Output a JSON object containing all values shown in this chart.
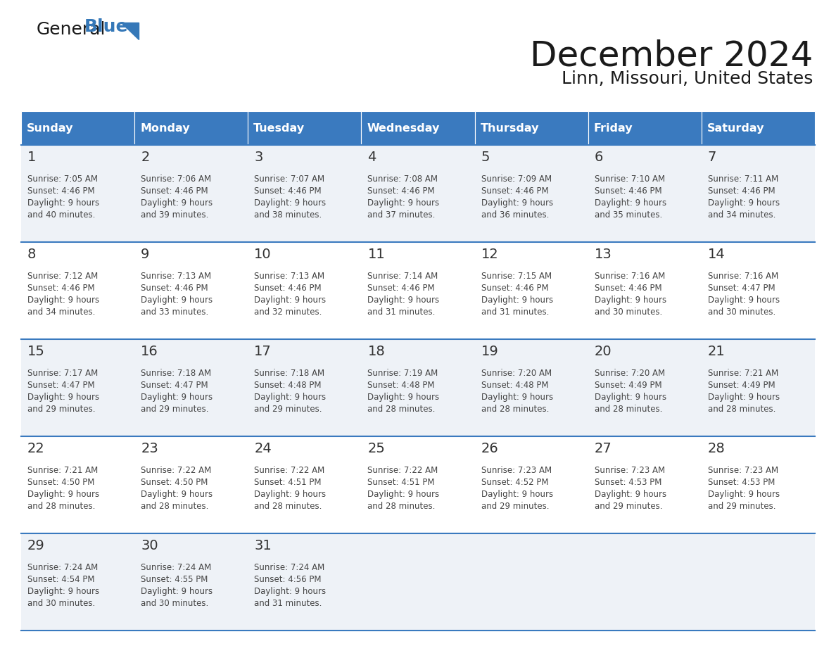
{
  "title": "December 2024",
  "subtitle": "Linn, Missouri, United States",
  "days_of_week": [
    "Sunday",
    "Monday",
    "Tuesday",
    "Wednesday",
    "Thursday",
    "Friday",
    "Saturday"
  ],
  "header_bg": "#3a7abf",
  "header_text": "#ffffff",
  "cell_bg_odd": "#eef2f7",
  "cell_bg_even": "#ffffff",
  "line_color": "#3a7abf",
  "day_num_color": "#333333",
  "text_color": "#444444",
  "title_color": "#1a1a1a",
  "logo_general_color": "#1a1a1a",
  "logo_blue_color": "#3578b8",
  "calendar_data": [
    {
      "day": 1,
      "col": 0,
      "row": 0,
      "sunrise": "7:05 AM",
      "sunset": "4:46 PM",
      "daylight_h": "9",
      "daylight_m": "40"
    },
    {
      "day": 2,
      "col": 1,
      "row": 0,
      "sunrise": "7:06 AM",
      "sunset": "4:46 PM",
      "daylight_h": "9",
      "daylight_m": "39"
    },
    {
      "day": 3,
      "col": 2,
      "row": 0,
      "sunrise": "7:07 AM",
      "sunset": "4:46 PM",
      "daylight_h": "9",
      "daylight_m": "38"
    },
    {
      "day": 4,
      "col": 3,
      "row": 0,
      "sunrise": "7:08 AM",
      "sunset": "4:46 PM",
      "daylight_h": "9",
      "daylight_m": "37"
    },
    {
      "day": 5,
      "col": 4,
      "row": 0,
      "sunrise": "7:09 AM",
      "sunset": "4:46 PM",
      "daylight_h": "9",
      "daylight_m": "36"
    },
    {
      "day": 6,
      "col": 5,
      "row": 0,
      "sunrise": "7:10 AM",
      "sunset": "4:46 PM",
      "daylight_h": "9",
      "daylight_m": "35"
    },
    {
      "day": 7,
      "col": 6,
      "row": 0,
      "sunrise": "7:11 AM",
      "sunset": "4:46 PM",
      "daylight_h": "9",
      "daylight_m": "34"
    },
    {
      "day": 8,
      "col": 0,
      "row": 1,
      "sunrise": "7:12 AM",
      "sunset": "4:46 PM",
      "daylight_h": "9",
      "daylight_m": "34"
    },
    {
      "day": 9,
      "col": 1,
      "row": 1,
      "sunrise": "7:13 AM",
      "sunset": "4:46 PM",
      "daylight_h": "9",
      "daylight_m": "33"
    },
    {
      "day": 10,
      "col": 2,
      "row": 1,
      "sunrise": "7:13 AM",
      "sunset": "4:46 PM",
      "daylight_h": "9",
      "daylight_m": "32"
    },
    {
      "day": 11,
      "col": 3,
      "row": 1,
      "sunrise": "7:14 AM",
      "sunset": "4:46 PM",
      "daylight_h": "9",
      "daylight_m": "31"
    },
    {
      "day": 12,
      "col": 4,
      "row": 1,
      "sunrise": "7:15 AM",
      "sunset": "4:46 PM",
      "daylight_h": "9",
      "daylight_m": "31"
    },
    {
      "day": 13,
      "col": 5,
      "row": 1,
      "sunrise": "7:16 AM",
      "sunset": "4:46 PM",
      "daylight_h": "9",
      "daylight_m": "30"
    },
    {
      "day": 14,
      "col": 6,
      "row": 1,
      "sunrise": "7:16 AM",
      "sunset": "4:47 PM",
      "daylight_h": "9",
      "daylight_m": "30"
    },
    {
      "day": 15,
      "col": 0,
      "row": 2,
      "sunrise": "7:17 AM",
      "sunset": "4:47 PM",
      "daylight_h": "9",
      "daylight_m": "29"
    },
    {
      "day": 16,
      "col": 1,
      "row": 2,
      "sunrise": "7:18 AM",
      "sunset": "4:47 PM",
      "daylight_h": "9",
      "daylight_m": "29"
    },
    {
      "day": 17,
      "col": 2,
      "row": 2,
      "sunrise": "7:18 AM",
      "sunset": "4:48 PM",
      "daylight_h": "9",
      "daylight_m": "29"
    },
    {
      "day": 18,
      "col": 3,
      "row": 2,
      "sunrise": "7:19 AM",
      "sunset": "4:48 PM",
      "daylight_h": "9",
      "daylight_m": "28"
    },
    {
      "day": 19,
      "col": 4,
      "row": 2,
      "sunrise": "7:20 AM",
      "sunset": "4:48 PM",
      "daylight_h": "9",
      "daylight_m": "28"
    },
    {
      "day": 20,
      "col": 5,
      "row": 2,
      "sunrise": "7:20 AM",
      "sunset": "4:49 PM",
      "daylight_h": "9",
      "daylight_m": "28"
    },
    {
      "day": 21,
      "col": 6,
      "row": 2,
      "sunrise": "7:21 AM",
      "sunset": "4:49 PM",
      "daylight_h": "9",
      "daylight_m": "28"
    },
    {
      "day": 22,
      "col": 0,
      "row": 3,
      "sunrise": "7:21 AM",
      "sunset": "4:50 PM",
      "daylight_h": "9",
      "daylight_m": "28"
    },
    {
      "day": 23,
      "col": 1,
      "row": 3,
      "sunrise": "7:22 AM",
      "sunset": "4:50 PM",
      "daylight_h": "9",
      "daylight_m": "28"
    },
    {
      "day": 24,
      "col": 2,
      "row": 3,
      "sunrise": "7:22 AM",
      "sunset": "4:51 PM",
      "daylight_h": "9",
      "daylight_m": "28"
    },
    {
      "day": 25,
      "col": 3,
      "row": 3,
      "sunrise": "7:22 AM",
      "sunset": "4:51 PM",
      "daylight_h": "9",
      "daylight_m": "28"
    },
    {
      "day": 26,
      "col": 4,
      "row": 3,
      "sunrise": "7:23 AM",
      "sunset": "4:52 PM",
      "daylight_h": "9",
      "daylight_m": "29"
    },
    {
      "day": 27,
      "col": 5,
      "row": 3,
      "sunrise": "7:23 AM",
      "sunset": "4:53 PM",
      "daylight_h": "9",
      "daylight_m": "29"
    },
    {
      "day": 28,
      "col": 6,
      "row": 3,
      "sunrise": "7:23 AM",
      "sunset": "4:53 PM",
      "daylight_h": "9",
      "daylight_m": "29"
    },
    {
      "day": 29,
      "col": 0,
      "row": 4,
      "sunrise": "7:24 AM",
      "sunset": "4:54 PM",
      "daylight_h": "9",
      "daylight_m": "30"
    },
    {
      "day": 30,
      "col": 1,
      "row": 4,
      "sunrise": "7:24 AM",
      "sunset": "4:55 PM",
      "daylight_h": "9",
      "daylight_m": "30"
    },
    {
      "day": 31,
      "col": 2,
      "row": 4,
      "sunrise": "7:24 AM",
      "sunset": "4:56 PM",
      "daylight_h": "9",
      "daylight_m": "31"
    }
  ]
}
